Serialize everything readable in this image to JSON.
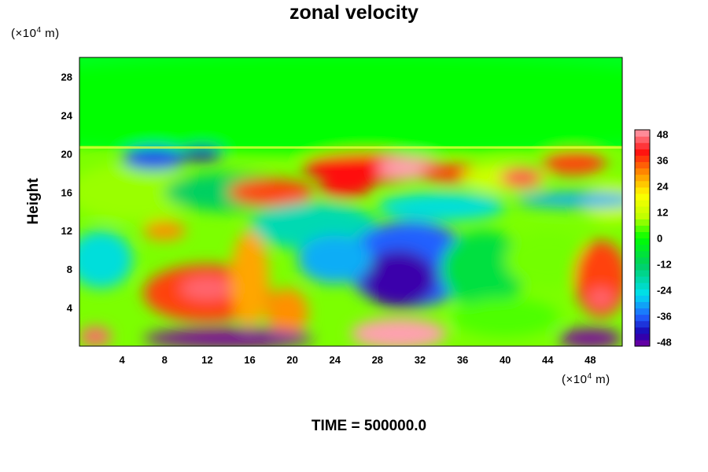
{
  "chart_data": {
    "type": "heatmap",
    "title": "zonal velocity",
    "ylabel": "Height",
    "xlabel": "",
    "x_unit": {
      "prefix": "(×10",
      "exp": "4",
      "suffix": " m)"
    },
    "y_unit": {
      "prefix": "(×10",
      "exp": "4",
      "suffix": " m)"
    },
    "x_ticks": [
      "4",
      "8",
      "12",
      "16",
      "20",
      "24",
      "28",
      "32",
      "36",
      "40",
      "44",
      "48"
    ],
    "y_ticks": [
      "4",
      "8",
      "12",
      "16",
      "20",
      "24",
      "28"
    ],
    "xlim": [
      0,
      51
    ],
    "ylim": [
      0,
      30
    ],
    "colorbar": {
      "ticks": [
        "48",
        "36",
        "24",
        "12",
        "0",
        "-12",
        "-24",
        "-36",
        "-48"
      ],
      "range": [
        -50,
        50
      ]
    },
    "footer": "TIME = 500000.0",
    "regions": [
      {
        "x": 25,
        "y": 25,
        "rx": 40,
        "ry": 5,
        "value": 0
      },
      {
        "x": 12,
        "y": 5.5,
        "rx": 6,
        "ry": 3,
        "value": 36
      },
      {
        "x": 12,
        "y": 6,
        "rx": 2.5,
        "ry": 1.2,
        "value": 46
      },
      {
        "x": 2,
        "y": 9,
        "rx": 3,
        "ry": 3,
        "value": -24
      },
      {
        "x": 5,
        "y": 16,
        "rx": 6,
        "ry": 3,
        "value": 8
      },
      {
        "x": 14,
        "y": 16,
        "rx": 6,
        "ry": 2,
        "value": -12
      },
      {
        "x": 7,
        "y": 19.5,
        "rx": 3,
        "ry": 1.2,
        "value": -38
      },
      {
        "x": 11.5,
        "y": 20,
        "rx": 2,
        "ry": 0.8,
        "value": -44
      },
      {
        "x": 18,
        "y": 16,
        "rx": 4,
        "ry": 1.4,
        "value": 36
      },
      {
        "x": 25,
        "y": 16.5,
        "rx": 2.5,
        "ry": 1.0,
        "value": 40
      },
      {
        "x": 27,
        "y": 18.5,
        "rx": 6,
        "ry": 1.6,
        "value": 40
      },
      {
        "x": 31,
        "y": 18.5,
        "rx": 3,
        "ry": 1.2,
        "value": 50
      },
      {
        "x": 35,
        "y": 18,
        "rx": 3,
        "ry": 1.0,
        "value": 36
      },
      {
        "x": 40,
        "y": 17.5,
        "rx": 4,
        "ry": 1.5,
        "value": 12
      },
      {
        "x": 41.5,
        "y": 17.5,
        "rx": 2,
        "ry": 1.0,
        "value": 44
      },
      {
        "x": 46.5,
        "y": 19,
        "rx": 3,
        "ry": 1.2,
        "value": 36
      },
      {
        "x": 50,
        "y": 15,
        "rx": 3,
        "ry": 2,
        "value": 12
      },
      {
        "x": 34,
        "y": 14.5,
        "rx": 6,
        "ry": 1.5,
        "value": -24
      },
      {
        "x": 47,
        "y": 15.2,
        "rx": 6,
        "ry": 0.8,
        "value": -30
      },
      {
        "x": 22,
        "y": 12.5,
        "rx": 6,
        "ry": 2.5,
        "value": -20
      },
      {
        "x": 31,
        "y": 8.5,
        "rx": 6,
        "ry": 4.5,
        "value": -36
      },
      {
        "x": 30,
        "y": 7,
        "rx": 3.5,
        "ry": 3,
        "value": -46
      },
      {
        "x": 24,
        "y": 9,
        "rx": 3.5,
        "ry": 2.5,
        "value": -30
      },
      {
        "x": 38,
        "y": 8,
        "rx": 4,
        "ry": 4,
        "value": -8
      },
      {
        "x": 44,
        "y": 9,
        "rx": 4,
        "ry": 3,
        "value": 6
      },
      {
        "x": 49,
        "y": 7,
        "rx": 2.5,
        "ry": 4,
        "value": 36
      },
      {
        "x": 49,
        "y": 5,
        "rx": 1.2,
        "ry": 1.0,
        "value": 46
      },
      {
        "x": 16,
        "y": 7,
        "rx": 1.8,
        "ry": 5,
        "value": 28
      },
      {
        "x": 19.5,
        "y": 3.5,
        "rx": 2,
        "ry": 2.5,
        "value": 30
      },
      {
        "x": 30,
        "y": 1.3,
        "rx": 4.5,
        "ry": 1.6,
        "value": 50
      },
      {
        "x": 14,
        "y": 0.8,
        "rx": 8,
        "ry": 1.0,
        "value": -50
      },
      {
        "x": 1.5,
        "y": 1.0,
        "rx": 1.5,
        "ry": 1.0,
        "value": 46
      },
      {
        "x": 48,
        "y": 0.8,
        "rx": 3,
        "ry": 1.0,
        "value": -50
      },
      {
        "x": 40,
        "y": 3,
        "rx": 5,
        "ry": 2,
        "value": 4
      },
      {
        "x": 8,
        "y": 12,
        "rx": 2,
        "ry": 1,
        "value": 30
      }
    ]
  }
}
